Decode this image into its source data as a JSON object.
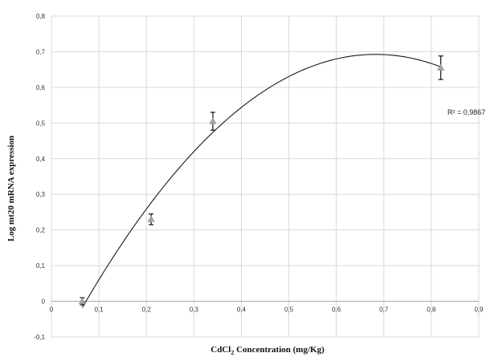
{
  "chart_data": {
    "type": "scatter",
    "xlabel_main": "CdCl",
    "xlabel_sub": "2",
    "xlabel_rest": " Concentration  (mg/Kg)",
    "ylabel": "Log mt20 mRNA expression",
    "xlim": [
      0,
      0.9
    ],
    "ylim": [
      -0.1,
      0.8
    ],
    "x_ticks": [
      "0",
      "0,1",
      "0,2",
      "0,3",
      "0,4",
      "0,5",
      "0,6",
      "0,7",
      "0,8",
      "0,9"
    ],
    "y_ticks": [
      "-0,1",
      "0",
      "0,1",
      "0,2",
      "0,3",
      "0,4",
      "0,5",
      "0,6",
      "0,7",
      "0,8"
    ],
    "grid": true,
    "points": [
      {
        "x": 0.065,
        "y": 0.0,
        "err": 0.01
      },
      {
        "x": 0.21,
        "y": 0.23,
        "err": 0.015
      },
      {
        "x": 0.34,
        "y": 0.505,
        "err": 0.025
      },
      {
        "x": 0.82,
        "y": 0.655,
        "err": 0.033
      }
    ],
    "trendline": {
      "type": "polynomial",
      "order": 2,
      "r2_label": "R² = 0,9867",
      "x_range": [
        0.065,
        0.82
      ]
    },
    "marker_color": "#a6a6a6"
  }
}
